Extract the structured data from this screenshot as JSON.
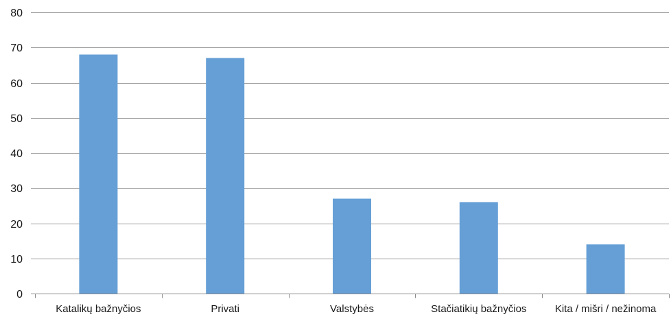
{
  "chart_data": {
    "type": "bar",
    "title": "",
    "xlabel": "",
    "ylabel": "",
    "categories": [
      "Katalikų bažnyčios",
      "Privati",
      "Valstybės",
      "Stačiatikių bažnyčios",
      "Kita / mišri / nežinoma"
    ],
    "values": [
      68,
      67,
      27,
      26,
      14
    ],
    "ylim": [
      0,
      80
    ],
    "yticks": [
      0,
      10,
      20,
      30,
      40,
      50,
      60,
      70,
      80
    ],
    "grid": true,
    "legend": "none",
    "bar_color": "#669fd6"
  }
}
